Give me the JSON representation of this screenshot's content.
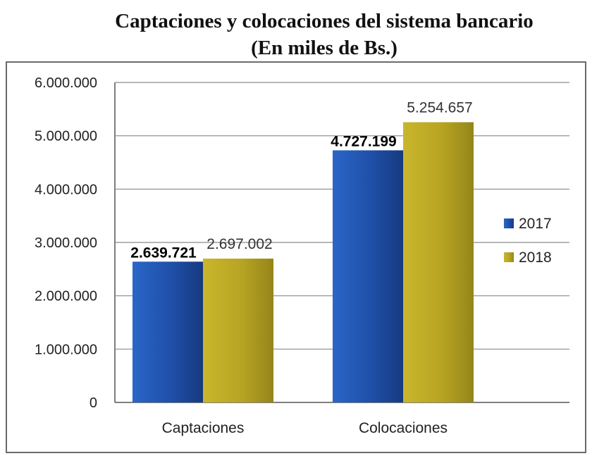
{
  "chart_data": {
    "type": "bar",
    "title": "Captaciones y colocaciones del sistema bancario",
    "subtitle": "(En miles de Bs.)",
    "categories": [
      "Captaciones",
      "Colocaciones"
    ],
    "series": [
      {
        "name": "2017",
        "values": [
          2639721,
          4727199
        ],
        "labels": [
          "2.639.721",
          "4.727.199"
        ],
        "color": "#1f4fa8"
      },
      {
        "name": "2018",
        "values": [
          2697002,
          5254657
        ],
        "labels": [
          "2.697.002",
          "5.254.657"
        ],
        "color": "#b7a423"
      }
    ],
    "ylim": [
      0,
      6000000
    ],
    "yticks": [
      0,
      1000000,
      2000000,
      3000000,
      4000000,
      5000000,
      6000000
    ],
    "ytick_labels": [
      "0",
      "1.000.000",
      "2.000.000",
      "3.000.000",
      "4.000.000",
      "5.000.000",
      "6.000.000"
    ],
    "grid": true,
    "legend_position": "right"
  }
}
